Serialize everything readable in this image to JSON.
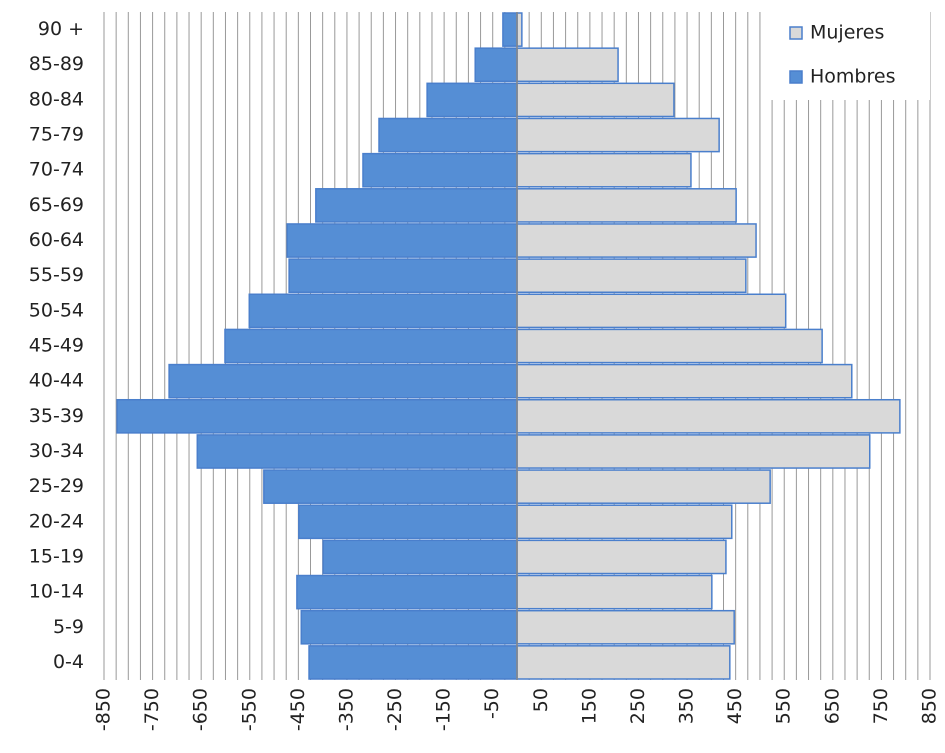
{
  "chart_data": {
    "type": "bar",
    "orientation": "horizontal",
    "stacked": true,
    "categories": [
      "0-4",
      "5-9",
      "10-14",
      "15-19",
      "20-24",
      "25-29",
      "30-34",
      "35-39",
      "40-44",
      "45-49",
      "50-54",
      "55-59",
      "60-64",
      "65-69",
      "70-74",
      "75-79",
      "80-84",
      "85-89",
      "90 +"
    ],
    "series": [
      {
        "name": "Mujeres",
        "color": "#d9d9d9",
        "values": [
          438,
          447,
          401,
          430,
          442,
          521,
          726,
          788,
          689,
          628,
          553,
          471,
          492,
          451,
          358,
          416,
          323,
          208,
          10
        ]
      },
      {
        "name": "Hombres",
        "color": "#558ed5",
        "values": [
          -428,
          -444,
          -453,
          -399,
          -449,
          -521,
          -658,
          -823,
          -716,
          -601,
          -551,
          -469,
          -473,
          -414,
          -317,
          -284,
          -185,
          -86,
          -29
        ]
      }
    ],
    "xlim": [
      -850,
      850
    ],
    "xticks": [
      -850,
      -750,
      -650,
      -550,
      -450,
      -350,
      -250,
      -150,
      -50,
      50,
      150,
      250,
      350,
      450,
      550,
      650,
      750,
      850
    ],
    "grid": true,
    "minor_grid_divisions": 4,
    "legend": "top-right"
  }
}
